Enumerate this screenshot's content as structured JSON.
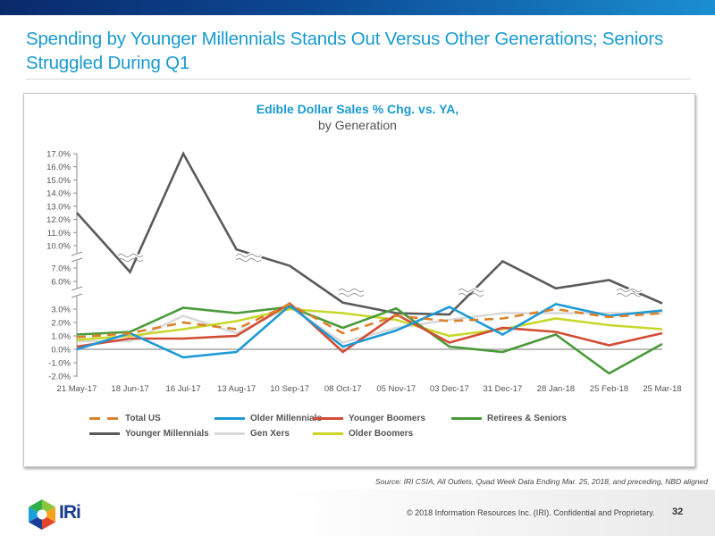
{
  "slide": {
    "title": "Spending by Younger Millennials Stands Out Versus Other Generations; Seniors Struggled During Q1",
    "source": "Source: IRI CSIA, All Outlets, Quad Week Data Ending Mar. 25, 2018, and preceding, NBD aligned",
    "copyright": "© 2018 Information Resources Inc. (IRI). Confidential and Proprietary.",
    "page_number": "32",
    "logo_text": "IRi",
    "brand_color": "#1a9bd0"
  },
  "chart_data": {
    "type": "line",
    "title": "Edible Dollar Sales % Chg. vs. YA,",
    "subtitle": "by Generation",
    "xlabel": "",
    "ylabel": "",
    "categories": [
      "21 May-17",
      "18 Jun-17",
      "16 Jul-17",
      "13 Aug-17",
      "10 Sep-17",
      "08 Oct-17",
      "05 Nov-17",
      "03 Dec-17",
      "31 Dec-17",
      "28 Jan-18",
      "25 Feb-18",
      "25 Mar-18"
    ],
    "y_axis": {
      "broken": true,
      "segments": [
        {
          "range": [
            -2.0,
            3.0
          ],
          "ticks": [
            "-2.0%",
            "-1.0%",
            "0.0%",
            "1.0%",
            "2.0%",
            "3.0%"
          ]
        },
        {
          "range": [
            6.0,
            7.0
          ],
          "ticks": [
            "6.0%",
            "7.0%"
          ]
        },
        {
          "range": [
            10.0,
            17.0
          ],
          "ticks": [
            "10.0%",
            "11.0%",
            "12.0%",
            "13.0%",
            "14.0%",
            "15.0%",
            "16.0%",
            "17.0%"
          ]
        }
      ]
    },
    "grid": false,
    "zero_line": true,
    "legend_position": "bottom",
    "series": [
      {
        "name": "Total US",
        "color": "#d9822b",
        "style": "dashed",
        "values": [
          0.9,
          1.2,
          2.0,
          1.5,
          3.7,
          1.2,
          2.5,
          2.1,
          2.3,
          3.0,
          2.4,
          2.7
        ]
      },
      {
        "name": "Older Millennials",
        "color": "#1e9ad6",
        "style": "solid",
        "values": [
          0.0,
          1.2,
          -0.6,
          -0.2,
          3.5,
          0.2,
          1.4,
          3.3,
          1.1,
          3.7,
          2.5,
          2.9
        ]
      },
      {
        "name": "Younger Boomers",
        "color": "#d24d35",
        "style": "solid",
        "values": [
          0.2,
          0.8,
          0.8,
          1.0,
          3.8,
          -0.2,
          2.6,
          0.5,
          1.6,
          1.3,
          0.3,
          1.2
        ]
      },
      {
        "name": "Retirees & Seniors",
        "color": "#4a9a3a",
        "style": "solid",
        "values": [
          1.1,
          1.3,
          3.2,
          2.7,
          3.3,
          1.6,
          3.1,
          0.2,
          -0.2,
          1.1,
          -1.8,
          0.4
        ]
      },
      {
        "name": "Younger Millennials",
        "color": "#5a5a5a",
        "style": "solid",
        "values": [
          12.5,
          6.7,
          17.0,
          9.5,
          7.3,
          3.9,
          2.7,
          2.6,
          7.9,
          5.9,
          6.1,
          3.8
        ]
      },
      {
        "name": "Gen Xers",
        "color": "#d9d9d9",
        "style": "solid",
        "values": [
          0.6,
          0.6,
          2.5,
          1.2,
          3.3,
          0.5,
          1.6,
          2.2,
          2.7,
          2.7,
          2.7,
          2.7
        ]
      },
      {
        "name": "Older Boomers",
        "color": "#c8d72a",
        "style": "solid",
        "values": [
          0.7,
          1.0,
          1.5,
          2.1,
          3.0,
          2.7,
          2.2,
          1.0,
          1.5,
          2.3,
          1.8,
          1.5
        ]
      }
    ]
  }
}
